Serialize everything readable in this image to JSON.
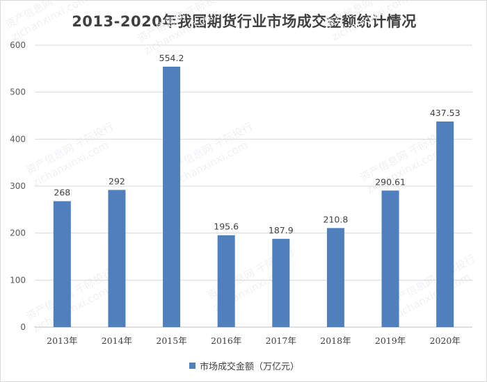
{
  "chart_data": {
    "type": "bar",
    "title": "2013-2020年我国期货行业市场成交金额统计情况",
    "categories": [
      "2013年",
      "2014年",
      "2015年",
      "2016年",
      "2017年",
      "2018年",
      "2019年",
      "2020年"
    ],
    "series": [
      {
        "name": "市场成交金额（万亿元）",
        "values": [
          268,
          292,
          554.2,
          195.6,
          187.9,
          210.8,
          290.61,
          437.53
        ],
        "labels": [
          "268",
          "292",
          "554.2",
          "195.6",
          "187.9",
          "210.8",
          "290.61",
          "437.53"
        ],
        "color": "#4f7fbd"
      }
    ],
    "yticks": [
      0,
      100,
      200,
      300,
      400,
      500,
      600
    ],
    "ylim": [
      0,
      600
    ],
    "grid": true,
    "legend": "bottom"
  },
  "watermark": [
    "资产信息网 千际投行",
    "zichanxinxi.com"
  ]
}
